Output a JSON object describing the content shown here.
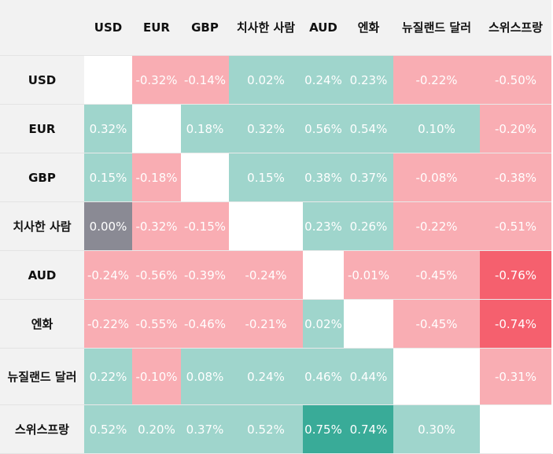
{
  "columns": [
    "USD",
    "EUR",
    "GBP",
    "치사한 사람",
    "AUD",
    "엔화",
    "뉴질랜드 달러",
    "스위스프랑"
  ],
  "colors": {
    "positive": "#9fd5cc",
    "strong_positive": "#39ab98",
    "negative": "#f9adb3",
    "strong_negative": "#f5606e",
    "zero": "#8a8a94",
    "self": "#ffffff"
  },
  "rows": [
    {
      "label": "USD",
      "cells": [
        {
          "v": "",
          "t": "w"
        },
        {
          "v": "-0.32%",
          "t": "p"
        },
        {
          "v": "-0.14%",
          "t": "p"
        },
        {
          "v": "0.02%",
          "t": "g"
        },
        {
          "v": "0.24%",
          "t": "g"
        },
        {
          "v": "0.23%",
          "t": "g"
        },
        {
          "v": "-0.22%",
          "t": "p"
        },
        {
          "v": "-0.50%",
          "t": "p"
        }
      ]
    },
    {
      "label": "EUR",
      "cells": [
        {
          "v": "0.32%",
          "t": "g"
        },
        {
          "v": "",
          "t": "w"
        },
        {
          "v": "0.18%",
          "t": "g"
        },
        {
          "v": "0.32%",
          "t": "g"
        },
        {
          "v": "0.56%",
          "t": "g"
        },
        {
          "v": "0.54%",
          "t": "g"
        },
        {
          "v": "0.10%",
          "t": "g"
        },
        {
          "v": "-0.20%",
          "t": "p"
        }
      ]
    },
    {
      "label": "GBP",
      "cells": [
        {
          "v": "0.15%",
          "t": "g"
        },
        {
          "v": "-0.18%",
          "t": "p"
        },
        {
          "v": "",
          "t": "w"
        },
        {
          "v": "0.15%",
          "t": "g"
        },
        {
          "v": "0.38%",
          "t": "g"
        },
        {
          "v": "0.37%",
          "t": "g"
        },
        {
          "v": "-0.08%",
          "t": "p"
        },
        {
          "v": "-0.38%",
          "t": "p"
        }
      ]
    },
    {
      "label": "치사한 사람",
      "cells": [
        {
          "v": "0.00%",
          "t": "x"
        },
        {
          "v": "-0.32%",
          "t": "p"
        },
        {
          "v": "-0.15%",
          "t": "p"
        },
        {
          "v": "",
          "t": "w"
        },
        {
          "v": "0.23%",
          "t": "g"
        },
        {
          "v": "0.26%",
          "t": "g"
        },
        {
          "v": "-0.22%",
          "t": "p"
        },
        {
          "v": "-0.51%",
          "t": "p"
        }
      ]
    },
    {
      "label": "AUD",
      "cells": [
        {
          "v": "-0.24%",
          "t": "p"
        },
        {
          "v": "-0.56%",
          "t": "p"
        },
        {
          "v": "-0.39%",
          "t": "p"
        },
        {
          "v": "-0.24%",
          "t": "p"
        },
        {
          "v": "",
          "t": "w"
        },
        {
          "v": "-0.01%",
          "t": "p"
        },
        {
          "v": "-0.45%",
          "t": "p"
        },
        {
          "v": "-0.76%",
          "t": "R"
        }
      ]
    },
    {
      "label": "엔화",
      "cells": [
        {
          "v": "-0.22%",
          "t": "p"
        },
        {
          "v": "-0.55%",
          "t": "p"
        },
        {
          "v": "-0.46%",
          "t": "p"
        },
        {
          "v": "-0.21%",
          "t": "p"
        },
        {
          "v": "0.02%",
          "t": "g"
        },
        {
          "v": "",
          "t": "w"
        },
        {
          "v": "-0.45%",
          "t": "p"
        },
        {
          "v": "-0.74%",
          "t": "R"
        }
      ]
    },
    {
      "label": "뉴질랜드 달러",
      "cells": [
        {
          "v": "0.22%",
          "t": "g"
        },
        {
          "v": "-0.10%",
          "t": "p"
        },
        {
          "v": "0.08%",
          "t": "g"
        },
        {
          "v": "0.24%",
          "t": "g"
        },
        {
          "v": "0.46%",
          "t": "g"
        },
        {
          "v": "0.44%",
          "t": "g"
        },
        {
          "v": "",
          "t": "w"
        },
        {
          "v": "-0.31%",
          "t": "p"
        }
      ]
    },
    {
      "label": "스위스프랑",
      "cells": [
        {
          "v": "0.52%",
          "t": "g"
        },
        {
          "v": "0.20%",
          "t": "g"
        },
        {
          "v": "0.37%",
          "t": "g"
        },
        {
          "v": "0.52%",
          "t": "g"
        },
        {
          "v": "0.75%",
          "t": "G"
        },
        {
          "v": "0.74%",
          "t": "G"
        },
        {
          "v": "0.30%",
          "t": "g"
        },
        {
          "v": "",
          "t": "w"
        }
      ]
    }
  ]
}
